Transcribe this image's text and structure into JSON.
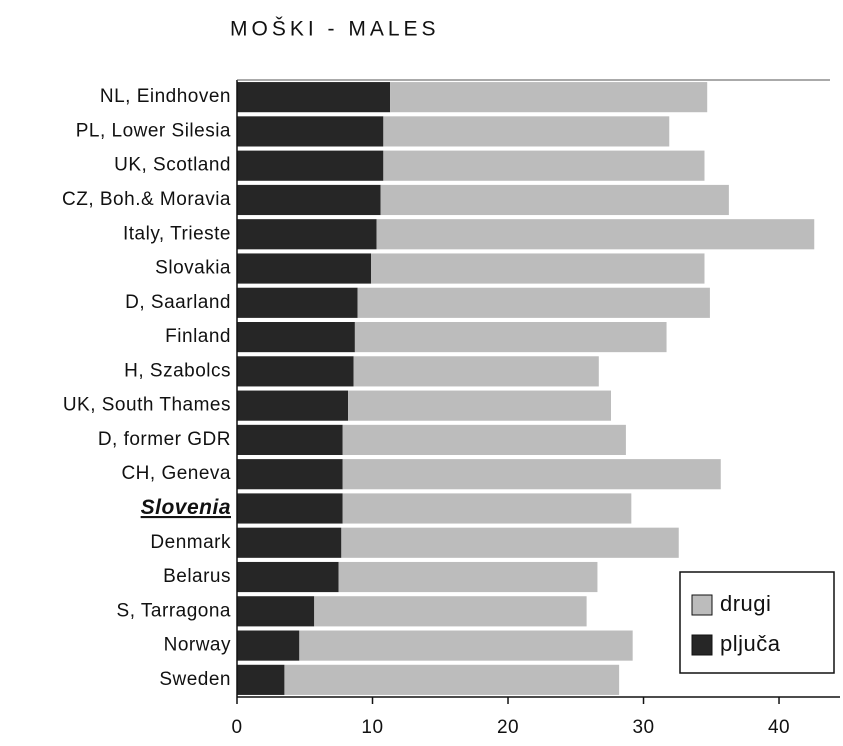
{
  "chart_data": {
    "type": "stacked_bar_horizontal",
    "title": "MOŠKI - MALES",
    "categories": [
      "NL, Eindhoven",
      "PL, Lower Silesia",
      "UK, Scotland",
      "CZ, Boh.& Moravia",
      "Italy, Trieste",
      "Slovakia",
      "D, Saarland",
      "Finland",
      "H, Szabolcs",
      "UK, South Thames",
      "D, former GDR",
      "CH, Geneva",
      "Slovenia",
      "Denmark",
      "Belarus",
      "S, Tarragona",
      "Norway",
      "Sweden"
    ],
    "series": [
      {
        "name": "pljuča",
        "color": "#262626",
        "values": [
          11.3,
          10.8,
          10.8,
          10.6,
          10.3,
          9.9,
          8.9,
          8.7,
          8.6,
          8.2,
          7.8,
          7.8,
          7.8,
          7.7,
          7.5,
          5.7,
          4.6,
          3.5
        ]
      },
      {
        "name": "drugi",
        "color": "#bcbcbc",
        "values": [
          23.4,
          21.1,
          23.7,
          25.7,
          32.3,
          24.6,
          26.0,
          23.0,
          18.1,
          19.4,
          20.9,
          27.9,
          21.3,
          24.9,
          19.1,
          20.1,
          24.6,
          24.7
        ]
      }
    ],
    "xlim": [
      0,
      44.5
    ],
    "xticks": [
      0,
      10,
      20,
      30,
      40
    ],
    "legend": "lower right"
  }
}
